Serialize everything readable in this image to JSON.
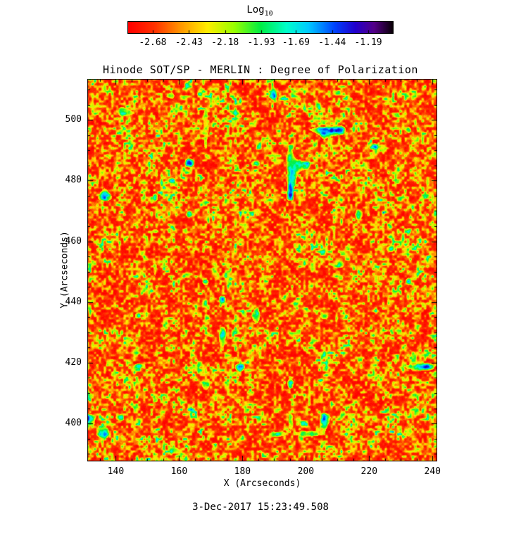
{
  "chart_data": {
    "type": "heatmap",
    "title": "Hinode SOT/SP - MERLIN : Degree of Polarization",
    "xlabel": "X (Arcseconds)",
    "ylabel": "Y (Arcseconds)",
    "x_range": [
      131,
      241.5
    ],
    "y_range": [
      387.5,
      513.5
    ],
    "x_ticks": [
      140,
      160,
      180,
      200,
      220,
      240
    ],
    "y_ticks": [
      400,
      420,
      440,
      460,
      480,
      500
    ],
    "minor_tick_step": 5,
    "colorbar": {
      "title_text": "Log",
      "title_sub": "10",
      "tick_labels": [
        "-2.68",
        "-2.43",
        "-2.18",
        "-1.93",
        "-1.69",
        "-1.44",
        "-1.19"
      ],
      "tick_values": [
        -2.68,
        -2.43,
        -2.18,
        -1.93,
        -1.69,
        -1.44,
        -1.19
      ],
      "range": [
        -2.85,
        -1.02
      ]
    },
    "colormap_stops": [
      [
        0.0,
        "#ff0000"
      ],
      [
        0.1,
        "#ff3300"
      ],
      [
        0.2,
        "#ff9900"
      ],
      [
        0.3,
        "#ffee00"
      ],
      [
        0.4,
        "#99ff00"
      ],
      [
        0.5,
        "#00ee44"
      ],
      [
        0.6,
        "#00ffcc"
      ],
      [
        0.68,
        "#00ccff"
      ],
      [
        0.78,
        "#0044ff"
      ],
      [
        0.86,
        "#2200cc"
      ],
      [
        0.93,
        "#550088"
      ],
      [
        1.0,
        "#0a0008"
      ]
    ],
    "timestamp": "3-Dec-2017 15:23:49.508",
    "value_summary": "Solar field dominated by log10 degree of polarization near -2.6 to -2.3 (red/orange) with yellow-green granulation lane speckle near -2.1 and sparse small cyan-blue patches reaching about -1.5"
  }
}
